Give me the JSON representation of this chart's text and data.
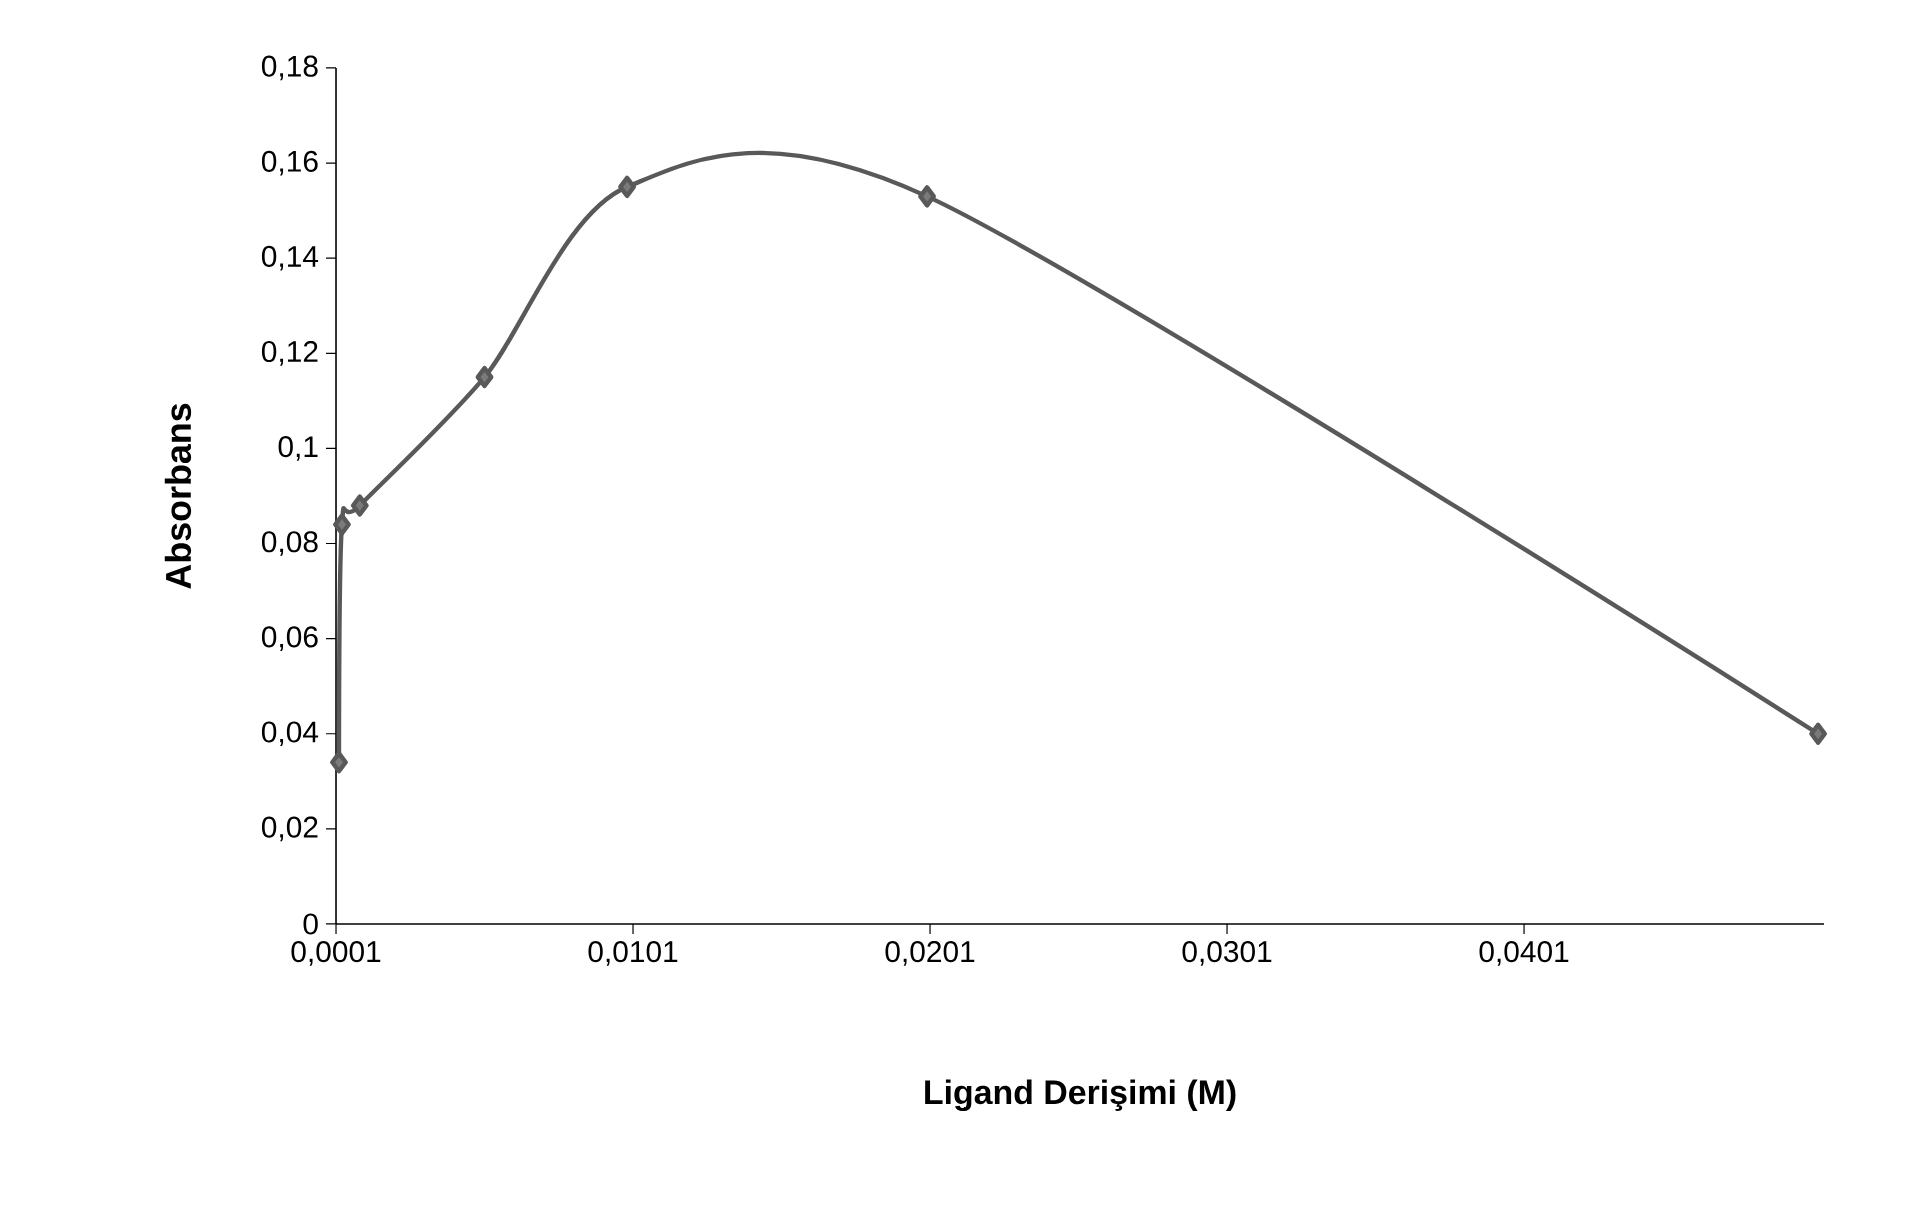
{
  "chart_data": {
    "type": "line",
    "xlabel": "Ligand Derişimi (M)",
    "ylabel": "Absorbans",
    "x": [
      0.0002,
      0.0003,
      0.0009,
      0.0051,
      0.0099,
      0.02,
      0.05
    ],
    "series": [
      {
        "color": "#595959",
        "values": [
          0.034,
          0.084,
          0.088,
          0.115,
          0.155,
          0.153,
          0.04
        ]
      }
    ],
    "xlim": [
      0.0001,
      0.0502
    ],
    "ylim": [
      0,
      0.18
    ],
    "xticks": [
      {
        "value": 0.0001,
        "label": "0,0001"
      },
      {
        "value": 0.0101,
        "label": "0,0101"
      },
      {
        "value": 0.0201,
        "label": "0,0201"
      },
      {
        "value": 0.0301,
        "label": "0,0301"
      },
      {
        "value": 0.0401,
        "label": "0,0401"
      }
    ],
    "yticks": [
      0,
      {
        "value": 0.02,
        "label": "0,02"
      },
      {
        "value": 0.04,
        "label": "0,04"
      },
      {
        "value": 0.06,
        "label": "0,06"
      },
      {
        "value": 0.08,
        "label": "0,08"
      },
      {
        "value": 0.1,
        "label": "0,1"
      },
      {
        "value": 0.12,
        "label": "0,12"
      },
      {
        "value": 0.14,
        "label": "0,14"
      },
      {
        "value": 0.16,
        "label": "0,16"
      },
      {
        "value": 0.18,
        "label": "0,18"
      }
    ],
    "marker": "diamond",
    "line_style": "solid"
  }
}
